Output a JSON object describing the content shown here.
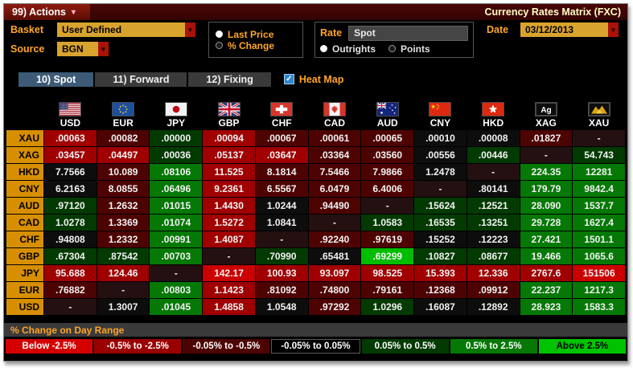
{
  "titlebar": {
    "actions_label": "99) Actions",
    "title": "Currency Rates Matrix (FXC)"
  },
  "controls": {
    "basket_label": "Basket",
    "basket_value": "User Defined",
    "source_label": "Source",
    "source_value": "BGN",
    "price_radios": [
      {
        "label": "Last Price",
        "selected": true
      },
      {
        "label": "% Change",
        "selected": false
      }
    ],
    "rate_label": "Rate",
    "rate_value": "Spot",
    "rate_radios": [
      {
        "label": "Outrights",
        "selected": true
      },
      {
        "label": "Points",
        "selected": false
      }
    ],
    "date_label": "Date",
    "date_value": "03/12/2013"
  },
  "tabs": [
    {
      "label": "10) Spot",
      "active": true
    },
    {
      "label": "11) Forward",
      "active": false
    },
    {
      "label": "12) Fixing",
      "active": false
    }
  ],
  "heatmap": {
    "label": "Heat Map",
    "checked": true
  },
  "matrix": {
    "columns": [
      "USD",
      "EUR",
      "JPY",
      "GBP",
      "CHF",
      "CAD",
      "AUD",
      "CNY",
      "HKD",
      "XAG",
      "XAU"
    ],
    "flags": [
      "usd",
      "eur",
      "jpy",
      "gbp",
      "chf",
      "cad",
      "aud",
      "cny",
      "hkd",
      "xag",
      "xau"
    ],
    "rows": [
      {
        "label": "XAU",
        "cells": [
          {
            "v": ".00063",
            "c": "r2"
          },
          {
            "v": ".00082",
            "c": "r1"
          },
          {
            "v": ".00000",
            "c": "g1"
          },
          {
            "v": ".00094",
            "c": "r2"
          },
          {
            "v": ".00067",
            "c": "r1"
          },
          {
            "v": ".00061",
            "c": "r1"
          },
          {
            "v": ".00065",
            "c": "r1"
          },
          {
            "v": ".00010",
            "c": "n"
          },
          {
            "v": ".00008",
            "c": "n"
          },
          {
            "v": ".01827",
            "c": "r1"
          },
          {
            "v": "-",
            "c": "x"
          }
        ]
      },
      {
        "label": "XAG",
        "cells": [
          {
            "v": ".03457",
            "c": "r2"
          },
          {
            "v": ".04497",
            "c": "r2"
          },
          {
            "v": ".00036",
            "c": "g1"
          },
          {
            "v": ".05137",
            "c": "r2"
          },
          {
            "v": ".03647",
            "c": "r2"
          },
          {
            "v": ".03364",
            "c": "r1"
          },
          {
            "v": ".03560",
            "c": "r1"
          },
          {
            "v": ".00556",
            "c": "n"
          },
          {
            "v": ".00446",
            "c": "g1"
          },
          {
            "v": "-",
            "c": "x"
          },
          {
            "v": "54.743",
            "c": "g1"
          }
        ]
      },
      {
        "label": "HKD",
        "cells": [
          {
            "v": "7.7566",
            "c": "n"
          },
          {
            "v": "10.089",
            "c": "r1"
          },
          {
            "v": ".08106",
            "c": "g2"
          },
          {
            "v": "11.525",
            "c": "r2"
          },
          {
            "v": "8.1814",
            "c": "r1"
          },
          {
            "v": "7.5466",
            "c": "r1"
          },
          {
            "v": "7.9866",
            "c": "r1"
          },
          {
            "v": "1.2478",
            "c": "n"
          },
          {
            "v": "-",
            "c": "x"
          },
          {
            "v": "224.35",
            "c": "g2"
          },
          {
            "v": "12281",
            "c": "g2"
          }
        ]
      },
      {
        "label": "CNY",
        "cells": [
          {
            "v": "6.2163",
            "c": "n"
          },
          {
            "v": "8.0855",
            "c": "r1"
          },
          {
            "v": ".06496",
            "c": "g2"
          },
          {
            "v": "9.2361",
            "c": "r2"
          },
          {
            "v": "6.5567",
            "c": "r1"
          },
          {
            "v": "6.0479",
            "c": "r1"
          },
          {
            "v": "6.4006",
            "c": "r1"
          },
          {
            "v": "-",
            "c": "x"
          },
          {
            "v": ".80141",
            "c": "n"
          },
          {
            "v": "179.79",
            "c": "g2"
          },
          {
            "v": "9842.4",
            "c": "g2"
          }
        ]
      },
      {
        "label": "AUD",
        "cells": [
          {
            "v": ".97120",
            "c": "g1"
          },
          {
            "v": "1.2632",
            "c": "r1"
          },
          {
            "v": ".01015",
            "c": "g2"
          },
          {
            "v": "1.4430",
            "c": "r2"
          },
          {
            "v": "1.0244",
            "c": "n"
          },
          {
            "v": ".94490",
            "c": "r1"
          },
          {
            "v": "-",
            "c": "x"
          },
          {
            "v": ".15624",
            "c": "g1"
          },
          {
            "v": ".12521",
            "c": "g1"
          },
          {
            "v": "28.090",
            "c": "g2"
          },
          {
            "v": "1537.7",
            "c": "g2"
          }
        ]
      },
      {
        "label": "CAD",
        "cells": [
          {
            "v": "1.0278",
            "c": "g1"
          },
          {
            "v": "1.3369",
            "c": "r1"
          },
          {
            "v": ".01074",
            "c": "g2"
          },
          {
            "v": "1.5272",
            "c": "r2"
          },
          {
            "v": "1.0841",
            "c": "n"
          },
          {
            "v": "-",
            "c": "x"
          },
          {
            "v": "1.0583",
            "c": "g1"
          },
          {
            "v": ".16535",
            "c": "g1"
          },
          {
            "v": ".13251",
            "c": "g1"
          },
          {
            "v": "29.728",
            "c": "g2"
          },
          {
            "v": "1627.4",
            "c": "g2"
          }
        ]
      },
      {
        "label": "CHF",
        "cells": [
          {
            "v": ".94808",
            "c": "n"
          },
          {
            "v": "1.2332",
            "c": "r1"
          },
          {
            "v": ".00991",
            "c": "g2"
          },
          {
            "v": "1.4087",
            "c": "r2"
          },
          {
            "v": "-",
            "c": "x"
          },
          {
            "v": ".92240",
            "c": "r1"
          },
          {
            "v": ".97619",
            "c": "r1"
          },
          {
            "v": ".15252",
            "c": "n"
          },
          {
            "v": ".12223",
            "c": "n"
          },
          {
            "v": "27.421",
            "c": "g2"
          },
          {
            "v": "1501.1",
            "c": "g2"
          }
        ]
      },
      {
        "label": "GBP",
        "cells": [
          {
            "v": ".67304",
            "c": "g1"
          },
          {
            "v": ".87542",
            "c": "g1"
          },
          {
            "v": ".00703",
            "c": "g2"
          },
          {
            "v": "-",
            "c": "x"
          },
          {
            "v": ".70990",
            "c": "g1"
          },
          {
            "v": ".65481",
            "c": "n"
          },
          {
            "v": ".69299",
            "c": "g3"
          },
          {
            "v": ".10827",
            "c": "g1"
          },
          {
            "v": ".08677",
            "c": "g1"
          },
          {
            "v": "19.466",
            "c": "g2"
          },
          {
            "v": "1065.6",
            "c": "g2"
          }
        ]
      },
      {
        "label": "JPY",
        "cells": [
          {
            "v": "95.688",
            "c": "r2"
          },
          {
            "v": "124.46",
            "c": "r2"
          },
          {
            "v": "-",
            "c": "x"
          },
          {
            "v": "142.17",
            "c": "r3"
          },
          {
            "v": "100.93",
            "c": "r2"
          },
          {
            "v": "93.097",
            "c": "r2"
          },
          {
            "v": "98.525",
            "c": "r2"
          },
          {
            "v": "15.393",
            "c": "r2"
          },
          {
            "v": "12.336",
            "c": "r2"
          },
          {
            "v": "2767.6",
            "c": "r2"
          },
          {
            "v": "151506",
            "c": "r3"
          }
        ]
      },
      {
        "label": "EUR",
        "cells": [
          {
            "v": ".76882",
            "c": "r1"
          },
          {
            "v": "-",
            "c": "x"
          },
          {
            "v": ".00803",
            "c": "g2"
          },
          {
            "v": "1.1423",
            "c": "r2"
          },
          {
            "v": ".81092",
            "c": "r1"
          },
          {
            "v": ".74800",
            "c": "r1"
          },
          {
            "v": ".79161",
            "c": "r1"
          },
          {
            "v": ".12368",
            "c": "r1"
          },
          {
            "v": ".09912",
            "c": "r1"
          },
          {
            "v": "22.237",
            "c": "g2"
          },
          {
            "v": "1217.3",
            "c": "g2"
          }
        ]
      },
      {
        "label": "USD",
        "cells": [
          {
            "v": "-",
            "c": "x"
          },
          {
            "v": "1.3007",
            "c": "n"
          },
          {
            "v": ".01045",
            "c": "g2"
          },
          {
            "v": "1.4858",
            "c": "r2"
          },
          {
            "v": "1.0548",
            "c": "n"
          },
          {
            "v": ".97292",
            "c": "r1"
          },
          {
            "v": "1.0296",
            "c": "g1"
          },
          {
            "v": ".16087",
            "c": "n"
          },
          {
            "v": ".12892",
            "c": "n"
          },
          {
            "v": "28.923",
            "c": "g2"
          },
          {
            "v": "1583.3",
            "c": "g2"
          }
        ]
      }
    ]
  },
  "heat_colors": {
    "r3": "#cc0000",
    "r2": "#a00000",
    "r1": "#4e0303",
    "n": "#0d0d0d",
    "g1": "#023a02",
    "g2": "#057805",
    "g3": "#00bd00",
    "x": "#241010"
  },
  "legend": {
    "title": "% Change on Day Range",
    "ranges": [
      {
        "label": "Below -2.5%",
        "bg": "#d40000",
        "fg": "#ffffff"
      },
      {
        "label": "-0.5% to -2.5%",
        "bg": "#9b0000",
        "fg": "#ffffff"
      },
      {
        "label": "-0.05% to -0.5%",
        "bg": "#4e0303",
        "fg": "#ffffff"
      },
      {
        "label": "-0.05% to 0.05%",
        "bg": "#000000",
        "fg": "#ffffff",
        "border": "#5a5a5a"
      },
      {
        "label": "0.05% to 0.5%",
        "bg": "#023a02",
        "fg": "#ffffff"
      },
      {
        "label": "0.5% to 2.5%",
        "bg": "#057805",
        "fg": "#ffffff"
      },
      {
        "label": "Above 2.5%",
        "bg": "#00c300",
        "fg": "#000000"
      }
    ]
  },
  "colors": {
    "amber_accent": "#ffa528",
    "row_header_bg": "#d78f00",
    "active_tab_bg": "#3d5a76",
    "title_text": "#ffffc4"
  }
}
